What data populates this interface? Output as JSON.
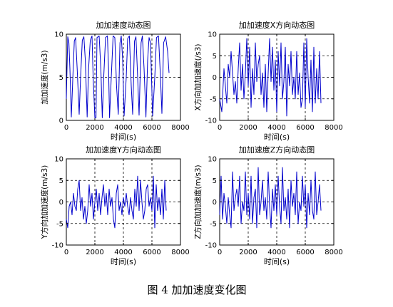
{
  "figure": {
    "caption": "图 4 加加速度变化图"
  },
  "chart_data": [
    {
      "type": "line",
      "title": "加加速度动态图",
      "xlabel": "时间(s)",
      "ylabel": "加加速度(m/s3)",
      "xlim": [
        0,
        8000
      ],
      "ylim": [
        0,
        10
      ],
      "xticks": [
        0,
        2000,
        4000,
        6000,
        8000
      ],
      "yticks": [
        0,
        5,
        10
      ],
      "grid": true,
      "color": "#0000cc",
      "series": [
        {
          "x": [
            0,
            100,
            180,
            250,
            350,
            480,
            560,
            650,
            760,
            900,
            1000,
            1120,
            1230,
            1330,
            1460,
            1560,
            1680,
            1800,
            1880,
            2000,
            2080,
            2150,
            2300,
            2420,
            2520,
            2620,
            2750,
            2880,
            2960,
            3030,
            3150,
            3280,
            3400,
            3520,
            3640,
            3760,
            3850,
            3950,
            4050,
            4200,
            4300,
            4420,
            4550,
            4650,
            4780,
            4880,
            5000,
            5100,
            5240,
            5330,
            5450,
            5580,
            5700,
            5800,
            5900,
            6050,
            6200,
            6320,
            6460,
            6600,
            6700,
            6820,
            6960,
            7100,
            7200
          ],
          "y": [
            2.5,
            9.7,
            9.0,
            6.0,
            0.4,
            6.0,
            9.2,
            9.6,
            6.0,
            0.7,
            5.0,
            9.3,
            9.7,
            7.0,
            0.4,
            6.0,
            9.3,
            9.8,
            5.0,
            0.3,
            0.3,
            9.6,
            9.8,
            6.0,
            0.3,
            5.0,
            9.6,
            9.8,
            6.0,
            0.3,
            5.0,
            9.8,
            9.6,
            4.0,
            0.7,
            9.0,
            9.8,
            7.0,
            0.5,
            5.0,
            9.5,
            9.8,
            4.0,
            0.7,
            9.2,
            9.7,
            5.0,
            0.6,
            9.0,
            9.8,
            6.0,
            0.4,
            7.0,
            9.6,
            9.0,
            0.5,
            5.0,
            9.6,
            9.8,
            5.0,
            0.8,
            9.0,
            9.7,
            8.0,
            5.5
          ]
        }
      ]
    },
    {
      "type": "line",
      "title": "加加速度X方向动态图",
      "xlabel": "时间(s)",
      "ylabel": "X方向加加速度(/s3)",
      "xlim": [
        0,
        8000
      ],
      "ylim": [
        -10,
        10
      ],
      "xticks": [
        0,
        2000,
        4000,
        6000,
        8000
      ],
      "yticks": [
        -10,
        -5,
        0,
        5,
        10
      ],
      "grid": true,
      "color": "#0000cc",
      "series": [
        {
          "x": [
            0,
            150,
            300,
            400,
            500,
            600,
            700,
            800,
            900,
            1000,
            1100,
            1200,
            1300,
            1400,
            1500,
            1600,
            1700,
            1800,
            1900,
            2000,
            2100,
            2200,
            2300,
            2400,
            2500,
            2600,
            2700,
            2800,
            2900,
            3000,
            3100,
            3200,
            3300,
            3400,
            3500,
            3600,
            3700,
            3800,
            3900,
            4000,
            4100,
            4200,
            4300,
            4400,
            4500,
            4600,
            4700,
            4800,
            4900,
            5000,
            5100,
            5200,
            5300,
            5400,
            5500,
            5600,
            5700,
            5800,
            5900,
            6000,
            6100,
            6200,
            6300,
            6400,
            6500,
            6600,
            6700,
            6800,
            6900,
            7000,
            7100
          ],
          "y": [
            -5,
            -8,
            2,
            -2,
            -6,
            3,
            0,
            6,
            1,
            -4,
            -1,
            -6,
            2,
            8,
            -3,
            3,
            -5,
            1,
            9,
            -2,
            7,
            -7,
            2,
            -4,
            8,
            -1,
            3,
            5,
            -4,
            1,
            -7,
            3,
            -8,
            1,
            9,
            -1,
            7,
            -3,
            4,
            -8,
            6,
            -2,
            8,
            -5,
            -1,
            7,
            -9,
            3,
            -2,
            6,
            -4,
            0,
            -5,
            6,
            -4,
            1,
            -7,
            -5,
            8,
            -7,
            9,
            0,
            -6,
            4,
            -8,
            7,
            -6,
            2,
            -5,
            6,
            -6
          ]
        }
      ]
    },
    {
      "type": "line",
      "title": "加加速度Y方向动态图",
      "xlabel": "时间(s)",
      "ylabel": "Y方向加加速度(m/s3)",
      "xlim": [
        0,
        8000
      ],
      "ylim": [
        -10,
        10
      ],
      "xticks": [
        0,
        2000,
        4000,
        6000,
        8000
      ],
      "yticks": [
        -10,
        -5,
        0,
        5,
        10
      ],
      "grid": true,
      "color": "#0000cc",
      "series": [
        {
          "x": [
            0,
            100,
            200,
            300,
            400,
            500,
            600,
            700,
            800,
            900,
            1000,
            1100,
            1200,
            1300,
            1400,
            1500,
            1600,
            1700,
            1800,
            1900,
            2000,
            2100,
            2200,
            2300,
            2400,
            2500,
            2600,
            2700,
            2800,
            2900,
            3000,
            3100,
            3200,
            3300,
            3400,
            3500,
            3600,
            3700,
            3800,
            3900,
            4000,
            4100,
            4200,
            4300,
            4400,
            4500,
            4600,
            4700,
            4800,
            4900,
            5000,
            5100,
            5200,
            5300,
            5400,
            5500,
            5600,
            5700,
            5800,
            5900,
            6000,
            6100,
            6200,
            6300,
            6400,
            6500,
            6600,
            6700,
            6800,
            6900,
            7000
          ],
          "y": [
            -4,
            -6,
            -1,
            0,
            -3,
            2,
            -1,
            -2,
            3,
            5,
            -2,
            1,
            -4,
            -1,
            -5,
            -2,
            4,
            -1,
            2,
            -4,
            0,
            3,
            -2,
            2,
            -3,
            1,
            4,
            -1,
            2,
            -3,
            3,
            -1,
            1,
            -4,
            -6,
            2,
            4,
            -2,
            0,
            -3,
            1,
            -1,
            2,
            -1,
            -3,
            1,
            -2,
            -4,
            3,
            -1,
            6,
            -2,
            5,
            0,
            -4,
            -2,
            3,
            4,
            -1,
            1,
            -2,
            6,
            -6,
            4,
            -2,
            1,
            -3,
            3,
            -4,
            5,
            -2
          ]
        }
      ]
    },
    {
      "type": "line",
      "title": "加加速度Z方向动态图",
      "xlabel": "时间(s)",
      "ylabel": "Z方向加加速度(m/s3)",
      "xlim": [
        0,
        8000
      ],
      "ylim": [
        -10,
        10
      ],
      "xticks": [
        0,
        2000,
        4000,
        6000,
        8000
      ],
      "yticks": [
        -10,
        -5,
        0,
        5,
        10
      ],
      "grid": true,
      "color": "#0000cc",
      "series": [
        {
          "x": [
            0,
            100,
            200,
            300,
            400,
            500,
            600,
            700,
            800,
            900,
            1000,
            1100,
            1200,
            1300,
            1400,
            1500,
            1600,
            1700,
            1800,
            1900,
            2000,
            2100,
            2200,
            2300,
            2400,
            2500,
            2600,
            2700,
            2800,
            2900,
            3000,
            3100,
            3200,
            3300,
            3400,
            3500,
            3600,
            3700,
            3800,
            3900,
            4000,
            4100,
            4200,
            4300,
            4400,
            4500,
            4600,
            4700,
            4800,
            4900,
            5000,
            5100,
            5200,
            5300,
            5400,
            5500,
            5600,
            5700,
            5800,
            5900,
            6000,
            6100,
            6200,
            6300,
            6400,
            6500,
            6600,
            6700,
            6800,
            6900,
            7000,
            7100
          ],
          "y": [
            -3,
            6,
            -4,
            2,
            -1,
            -5,
            1,
            -3,
            -6,
            7,
            -2,
            1,
            3,
            -1,
            6,
            -5,
            0,
            -2,
            7,
            -3,
            2,
            -4,
            6,
            -5,
            1,
            3,
            -6,
            8,
            -3,
            0,
            5,
            -2,
            1,
            -4,
            7,
            -1,
            -6,
            3,
            -2,
            4,
            -3,
            6,
            -1,
            -5,
            8,
            -2,
            1,
            -4,
            3,
            -6,
            5,
            -1,
            2,
            -3,
            7,
            -5,
            0,
            -2,
            6,
            -1,
            4,
            -6,
            2,
            -3,
            5,
            -2,
            -4,
            7,
            -3,
            0,
            4,
            -2
          ]
        }
      ]
    }
  ]
}
